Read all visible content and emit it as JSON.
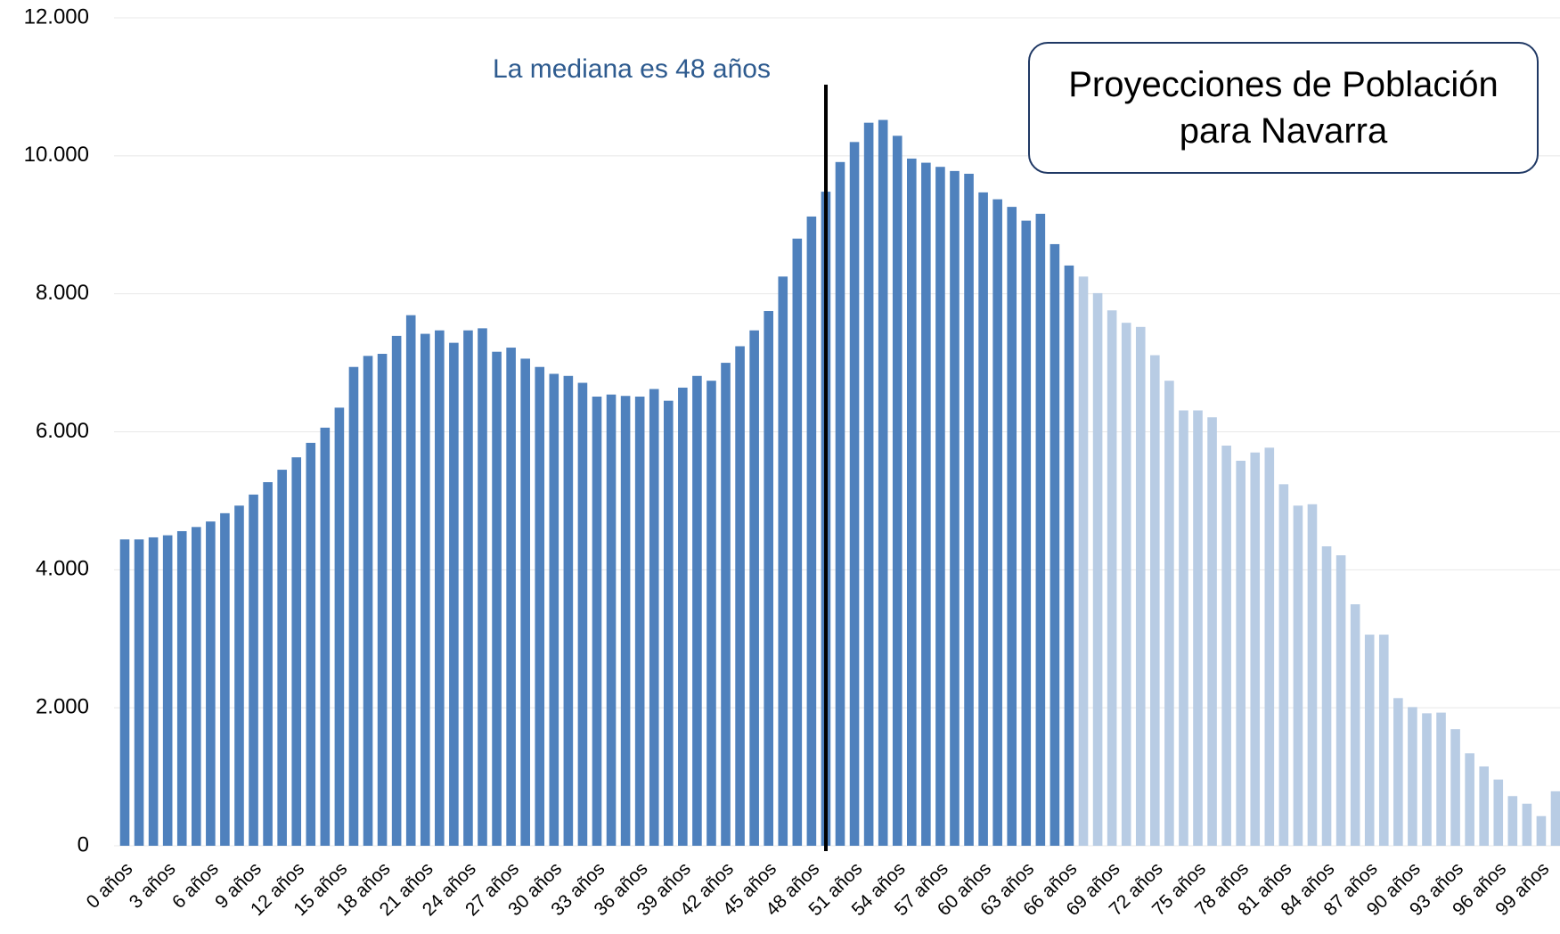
{
  "chart_data": {
    "type": "bar",
    "title": "Proyecciones de Población para Navarra",
    "annotation": "La mediana es 48 años",
    "categories": [
      "0 años",
      null,
      null,
      "3 años",
      null,
      null,
      "6 años",
      null,
      null,
      "9 años",
      null,
      null,
      "12 años",
      null,
      null,
      "15 años",
      null,
      null,
      "18 años",
      null,
      null,
      "21 años",
      null,
      null,
      "24 años",
      null,
      null,
      "27 años",
      null,
      null,
      "30 años",
      null,
      null,
      "33 años",
      null,
      null,
      "36 años",
      null,
      null,
      "39 años",
      null,
      null,
      "42 años",
      null,
      null,
      "45 años",
      null,
      null,
      "48 años",
      null,
      null,
      "51 años",
      null,
      null,
      "54 años",
      null,
      null,
      "57 años",
      null,
      null,
      "60 años",
      null,
      null,
      "63 años",
      null,
      null,
      "66 años",
      null,
      null,
      "69 años",
      null,
      null,
      "72 años",
      null,
      null,
      "75 años",
      null,
      null,
      "78 años",
      null,
      null,
      "81 años",
      null,
      null,
      "84 años",
      null,
      null,
      "87 años",
      null,
      null,
      "90 años",
      null,
      null,
      "93 años",
      null,
      null,
      "96 años",
      null,
      null,
      "99 años",
      null
    ],
    "values": [
      4440,
      4440,
      4470,
      4500,
      4560,
      4620,
      4700,
      4820,
      4930,
      5090,
      5270,
      5450,
      5630,
      5840,
      6060,
      6350,
      6940,
      7100,
      7130,
      7390,
      7690,
      7420,
      7470,
      7290,
      7470,
      7500,
      7160,
      7220,
      7060,
      6940,
      6840,
      6810,
      6710,
      6510,
      6540,
      6520,
      6510,
      6620,
      6450,
      6640,
      6810,
      6740,
      7000,
      7240,
      7470,
      7750,
      8250,
      8800,
      9120,
      9480,
      9910,
      10200,
      10480,
      10520,
      10290,
      9960,
      9900,
      9840,
      9780,
      9740,
      9470,
      9370,
      9260,
      9060,
      9160,
      8720,
      8410,
      8250,
      8010,
      7760,
      7580,
      7520,
      7110,
      6740,
      6310,
      6310,
      6210,
      5800,
      5580,
      5700,
      5770,
      5240,
      4930,
      4950,
      4340,
      4210,
      3500,
      3060,
      3060,
      2140,
      2010,
      1920,
      1930,
      1690,
      1340,
      1150,
      960,
      720,
      610,
      430,
      790
    ],
    "colors": [
      "#4f81bd",
      "#4f81bd",
      "#4f81bd",
      "#4f81bd",
      "#4f81bd",
      "#4f81bd",
      "#4f81bd",
      "#4f81bd",
      "#4f81bd",
      "#4f81bd",
      "#4f81bd",
      "#4f81bd",
      "#4f81bd",
      "#4f81bd",
      "#4f81bd",
      "#4f81bd",
      "#4f81bd",
      "#4f81bd",
      "#4f81bd",
      "#4f81bd",
      "#4f81bd",
      "#4f81bd",
      "#4f81bd",
      "#4f81bd",
      "#4f81bd",
      "#4f81bd",
      "#4f81bd",
      "#4f81bd",
      "#4f81bd",
      "#4f81bd",
      "#4f81bd",
      "#4f81bd",
      "#4f81bd",
      "#4f81bd",
      "#4f81bd",
      "#4f81bd",
      "#4f81bd",
      "#4f81bd",
      "#4f81bd",
      "#4f81bd",
      "#4f81bd",
      "#4f81bd",
      "#4f81bd",
      "#4f81bd",
      "#4f81bd",
      "#4f81bd",
      "#4f81bd",
      "#4f81bd",
      "#4f81bd",
      "#4f81bd",
      "#4f81bd",
      "#4f81bd",
      "#4f81bd",
      "#4f81bd",
      "#4f81bd",
      "#4f81bd",
      "#4f81bd",
      "#4f81bd",
      "#4f81bd",
      "#4f81bd",
      "#4f81bd",
      "#4f81bd",
      "#4f81bd",
      "#4f81bd",
      "#4f81bd",
      "#4f81bd",
      "#4f81bd",
      "#b8cce4",
      "#b8cce4",
      "#b8cce4",
      "#b8cce4",
      "#b8cce4",
      "#b8cce4",
      "#b8cce4",
      "#b8cce4",
      "#b8cce4",
      "#b8cce4",
      "#b8cce4",
      "#b8cce4",
      "#b8cce4",
      "#b8cce4",
      "#b8cce4",
      "#b8cce4",
      "#b8cce4",
      "#b8cce4",
      "#b8cce4",
      "#b8cce4",
      "#b8cce4",
      "#b8cce4",
      "#b8cce4",
      "#b8cce4",
      "#b8cce4",
      "#b8cce4",
      "#b8cce4",
      "#b8cce4",
      "#b8cce4",
      "#b8cce4",
      "#b8cce4",
      "#b8cce4",
      "#b8cce4",
      "#b8cce4"
    ],
    "ylim": [
      0,
      12000
    ],
    "yticks": [
      0,
      {
        "value": 2000,
        "label": "2.000"
      },
      {
        "value": 4000,
        "label": "4.000"
      },
      {
        "value": 6000,
        "label": "6.000"
      },
      {
        "value": 8000,
        "label": "8.000"
      },
      {
        "value": 10000,
        "label": "10.000"
      },
      {
        "value": 12000,
        "label": "12.000"
      }
    ],
    "grid": true
  }
}
